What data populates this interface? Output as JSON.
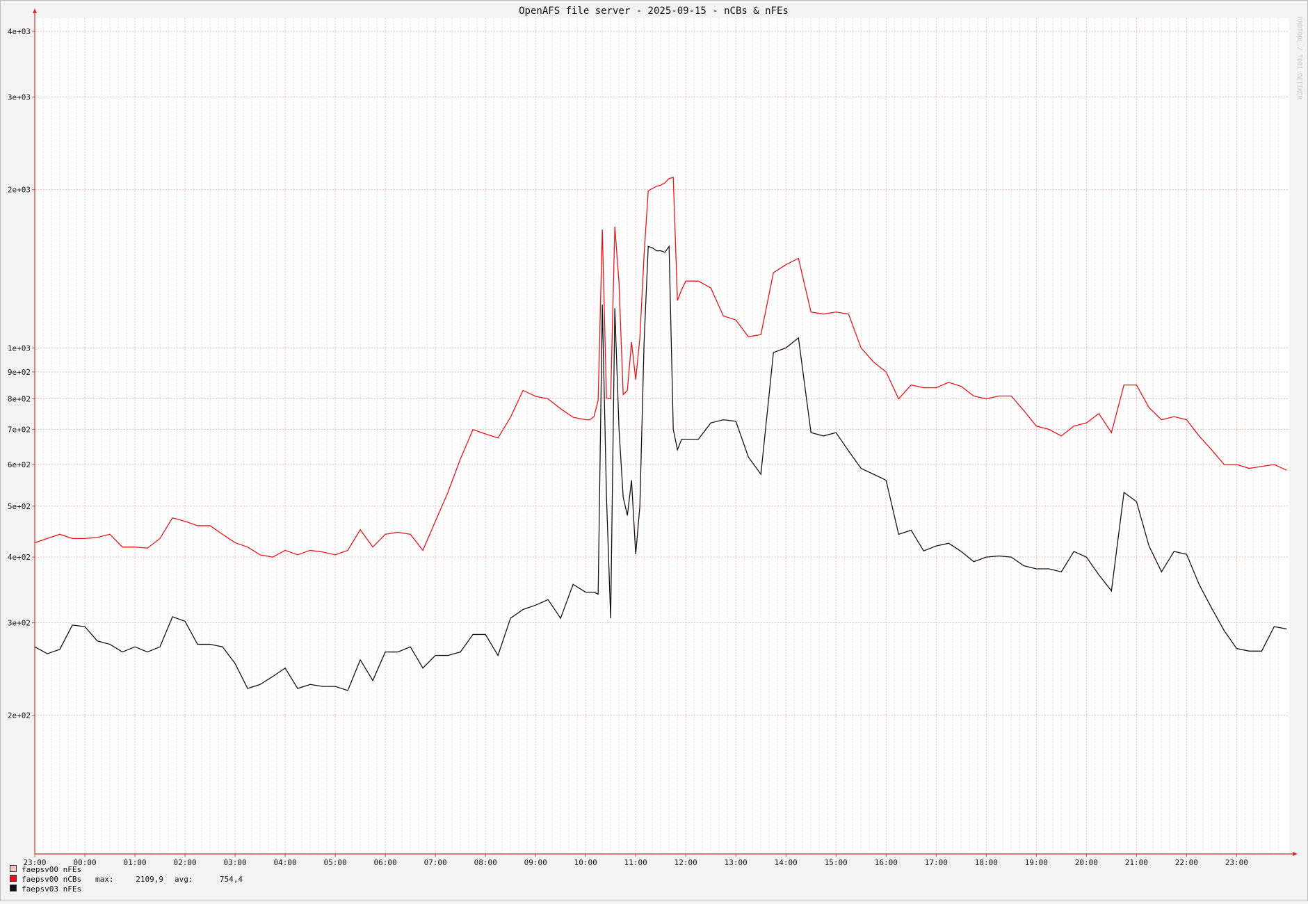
{
  "chart_data": {
    "type": "line",
    "title": "OpenAFS file server - 2025-09-15 - nCBs & nFEs",
    "watermark": "RRDTOOL / TOBI OETIKER",
    "log_scale": true,
    "grid": true,
    "x": [
      0,
      15,
      30,
      45,
      60,
      75,
      90,
      105,
      120,
      135,
      150,
      165,
      180,
      195,
      210,
      225,
      240,
      255,
      270,
      285,
      300,
      315,
      330,
      345,
      360,
      375,
      390,
      405,
      420,
      435,
      450,
      465,
      480,
      495,
      510,
      525,
      540,
      555,
      570,
      585,
      600,
      615,
      630,
      645,
      660,
      665,
      670,
      675,
      680,
      685,
      690,
      695,
      700,
      705,
      710,
      715,
      720,
      725,
      730,
      735,
      740,
      745,
      750,
      755,
      760,
      765,
      770,
      775,
      780,
      795,
      810,
      825,
      840,
      855,
      870,
      885,
      900,
      915,
      930,
      945,
      960,
      975,
      990,
      1005,
      1020,
      1035,
      1050,
      1065,
      1080,
      1095,
      1110,
      1125,
      1140,
      1155,
      1170,
      1185,
      1200,
      1215,
      1230,
      1245,
      1260,
      1275,
      1290,
      1305,
      1320,
      1335,
      1350,
      1365,
      1380,
      1395,
      1410,
      1425,
      1440,
      1455,
      1470,
      1485,
      1500
    ],
    "xlim": [
      0,
      1503
    ],
    "xticks": [
      {
        "value": 0,
        "label": "23:00"
      },
      {
        "value": 60,
        "label": "00:00"
      },
      {
        "value": 120,
        "label": "01:00"
      },
      {
        "value": 180,
        "label": "02:00"
      },
      {
        "value": 240,
        "label": "03:00"
      },
      {
        "value": 300,
        "label": "04:00"
      },
      {
        "value": 360,
        "label": "05:00"
      },
      {
        "value": 420,
        "label": "06:00"
      },
      {
        "value": 480,
        "label": "07:00"
      },
      {
        "value": 540,
        "label": "08:00"
      },
      {
        "value": 600,
        "label": "09:00"
      },
      {
        "value": 660,
        "label": "10:00"
      },
      {
        "value": 720,
        "label": "11:00"
      },
      {
        "value": 780,
        "label": "12:00"
      },
      {
        "value": 840,
        "label": "13:00"
      },
      {
        "value": 900,
        "label": "14:00"
      },
      {
        "value": 960,
        "label": "15:00"
      },
      {
        "value": 1020,
        "label": "16:00"
      },
      {
        "value": 1080,
        "label": "17:00"
      },
      {
        "value": 1140,
        "label": "18:00"
      },
      {
        "value": 1200,
        "label": "19:00"
      },
      {
        "value": 1260,
        "label": "20:00"
      },
      {
        "value": 1320,
        "label": "21:00"
      },
      {
        "value": 1380,
        "label": "22:00"
      },
      {
        "value": 1440,
        "label": "23:00"
      }
    ],
    "ylim": [
      109,
      4240
    ],
    "yticks": [
      {
        "value": 200,
        "label": "2e+02"
      },
      {
        "value": 300,
        "label": "3e+02"
      },
      {
        "value": 400,
        "label": "4e+02"
      },
      {
        "value": 500,
        "label": "5e+02"
      },
      {
        "value": 600,
        "label": "6e+02"
      },
      {
        "value": 700,
        "label": "7e+02"
      },
      {
        "value": 800,
        "label": "8e+02"
      },
      {
        "value": 900,
        "label": "9e+02"
      },
      {
        "value": 1000,
        "label": "1e+03"
      },
      {
        "value": 2000,
        "label": "2e+03"
      },
      {
        "value": 3000,
        "label": "3e+03"
      },
      {
        "value": 4000,
        "label": "4e+03"
      }
    ],
    "series": [
      {
        "name": "faepsv00 nFEs",
        "color": "#f7c4c4",
        "values": [
          null,
          null,
          null,
          null,
          null,
          null,
          null,
          null,
          null,
          null,
          null,
          null,
          null,
          null,
          null,
          null,
          null,
          null,
          null,
          null,
          null,
          null,
          null,
          null,
          null,
          null,
          null,
          null,
          null,
          null,
          null,
          null,
          null,
          null,
          null,
          null,
          null,
          null,
          null,
          null,
          null,
          null,
          null,
          null,
          null,
          null,
          null,
          null,
          null,
          null,
          null,
          null,
          null,
          null,
          null,
          null,
          null,
          null,
          null,
          null,
          null,
          null,
          null,
          null,
          null,
          null,
          null,
          null,
          null,
          null,
          null,
          null,
          null,
          null,
          null,
          null,
          null,
          null,
          null,
          null,
          null,
          null,
          null,
          null,
          null,
          null,
          null,
          null,
          null,
          null,
          null,
          null,
          null,
          null,
          null,
          null,
          null,
          null,
          null,
          null,
          null,
          null,
          null,
          null,
          null,
          null,
          null,
          null,
          null,
          null,
          null,
          null,
          null,
          null,
          null,
          null,
          null
        ]
      },
      {
        "name": "faepsv00 nCBs",
        "color": "#e8141a",
        "stats": [
          {
            "label": "max:",
            "text": "2109,9"
          },
          {
            "label": "avg:",
            "text": "754,4"
          }
        ],
        "values": [
          426,
          434,
          442,
          434,
          434,
          436,
          442,
          418,
          418,
          416,
          434,
          475,
          468,
          459,
          459,
          442,
          426,
          418,
          404,
          400,
          412,
          404,
          412,
          409,
          404,
          412,
          451,
          418,
          442,
          446,
          442,
          412,
          468,
          531,
          615,
          699,
          686,
          674,
          738,
          830,
          809,
          800,
          766,
          738,
          730,
          730,
          740,
          795,
          1680,
          803,
          800,
          1700,
          1330,
          815,
          830,
          1026,
          870,
          1045,
          1500,
          1990,
          2010,
          2030,
          2040,
          2060,
          2100,
          2110,
          1230,
          1290,
          1340,
          1340,
          1300,
          1150,
          1130,
          1050,
          1060,
          1390,
          1440,
          1480,
          1170,
          1160,
          1170,
          1160,
          1000,
          940,
          900,
          800,
          850,
          840,
          840,
          860,
          845,
          810,
          800,
          810,
          810,
          760,
          710,
          700,
          680,
          710,
          720,
          750,
          690,
          850,
          850,
          770,
          730,
          740,
          730,
          680,
          640,
          600,
          600,
          590,
          595,
          600,
          585
        ]
      },
      {
        "name": "faepsv03 nFEs",
        "color": "#111111",
        "values": [
          270,
          262,
          267,
          297,
          295,
          277,
          273,
          264,
          270,
          264,
          270,
          308,
          302,
          273,
          273,
          270,
          251,
          225,
          229,
          237,
          246,
          225,
          229,
          227,
          227,
          223,
          255,
          233,
          264,
          264,
          270,
          246,
          260,
          260,
          264,
          285,
          285,
          260,
          306,
          318,
          324,
          332,
          306,
          355,
          343,
          343,
          343,
          340,
          1209,
          520,
          306,
          1190,
          700,
          520,
          480,
          560,
          405,
          500,
          1020,
          1560,
          1550,
          1530,
          1530,
          1520,
          1560,
          700,
          640,
          670,
          670,
          670,
          720,
          730,
          725,
          620,
          575,
          980,
          1000,
          1045,
          690,
          680,
          690,
          637,
          590,
          575,
          560,
          442,
          450,
          411,
          420,
          425,
          410,
          392,
          400,
          402,
          400,
          385,
          380,
          380,
          375,
          410,
          400,
          370,
          345,
          531,
          510,
          420,
          375,
          410,
          405,
          355,
          320,
          290,
          268,
          265,
          265,
          295,
          292
        ]
      }
    ]
  }
}
